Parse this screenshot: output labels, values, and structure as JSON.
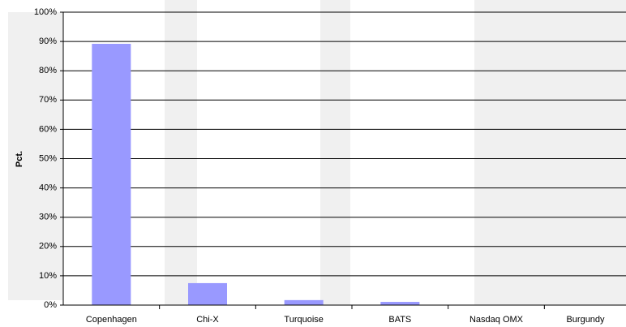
{
  "chart_data": {
    "type": "bar",
    "y_label": "Pct.",
    "categories": [
      "Copenhagen",
      "Chi-X",
      "Turquoise",
      "BATS",
      "Nasdaq OMX",
      "Burgundy"
    ],
    "values": [
      89.2,
      7.5,
      1.7,
      1.1,
      0,
      0
    ],
    "color": "#9999ff",
    "ylim": [
      0,
      100
    ],
    "yticks": [
      {
        "value": 0,
        "label": "0%"
      },
      {
        "value": 10,
        "label": "10%"
      },
      {
        "value": 20,
        "label": "20%"
      },
      {
        "value": 30,
        "label": "30%"
      },
      {
        "value": 40,
        "label": "40%"
      },
      {
        "value": 50,
        "label": "50%"
      },
      {
        "value": 60,
        "label": "60%"
      },
      {
        "value": 70,
        "label": "70%"
      },
      {
        "value": 80,
        "label": "80%"
      },
      {
        "value": 90,
        "label": "90%"
      },
      {
        "value": 100,
        "label": "100%"
      }
    ],
    "grid": true
  }
}
